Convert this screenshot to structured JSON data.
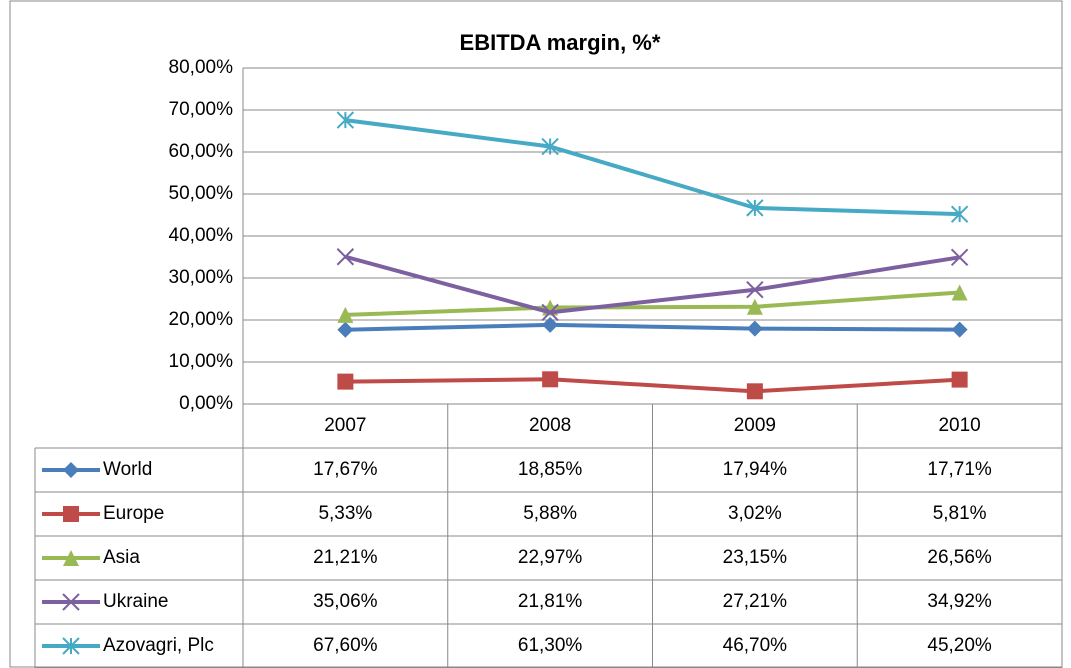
{
  "chart_data": {
    "type": "line",
    "title": "EBITDA margin, %*",
    "categories": [
      "2007",
      "2008",
      "2009",
      "2010"
    ],
    "series": [
      {
        "name": "World",
        "color": "#4a7ebb",
        "marker": "diamond",
        "values": [
          17.67,
          18.85,
          17.94,
          17.71
        ],
        "value_labels": [
          "17,67%",
          "18,85%",
          "17,94%",
          "17,71%"
        ]
      },
      {
        "name": "Europe",
        "color": "#be4b48",
        "marker": "square",
        "values": [
          5.33,
          5.88,
          3.02,
          5.81
        ],
        "value_labels": [
          "5,33%",
          "5,88%",
          "3,02%",
          "5,81%"
        ]
      },
      {
        "name": "Asia",
        "color": "#98b954",
        "marker": "triangle",
        "values": [
          21.21,
          22.97,
          23.15,
          26.56
        ],
        "value_labels": [
          "21,21%",
          "22,97%",
          "23,15%",
          "26,56%"
        ]
      },
      {
        "name": "Ukraine",
        "color": "#7d60a0",
        "marker": "x",
        "values": [
          35.06,
          21.81,
          27.21,
          34.92
        ],
        "value_labels": [
          "35,06%",
          "21,81%",
          "27,21%",
          "34,92%"
        ]
      },
      {
        "name": "Azovagri, Plc",
        "color": "#46aac5",
        "marker": "star",
        "values": [
          67.6,
          61.3,
          46.7,
          45.2
        ],
        "value_labels": [
          "67,60%",
          "61,30%",
          "46,70%",
          "45,20%"
        ]
      }
    ],
    "ylim": [
      0,
      80
    ],
    "yticks": [
      {
        "value": 0,
        "label": "0,00%"
      },
      {
        "value": 10,
        "label": "10,00%"
      },
      {
        "value": 20,
        "label": "20,00%"
      },
      {
        "value": 30,
        "label": "30,00%"
      },
      {
        "value": 40,
        "label": "40,00%"
      },
      {
        "value": 50,
        "label": "50,00%"
      },
      {
        "value": 60,
        "label": "60,00%"
      },
      {
        "value": 70,
        "label": "70,00%"
      },
      {
        "value": 80,
        "label": "80,00%"
      }
    ],
    "grid": true
  }
}
